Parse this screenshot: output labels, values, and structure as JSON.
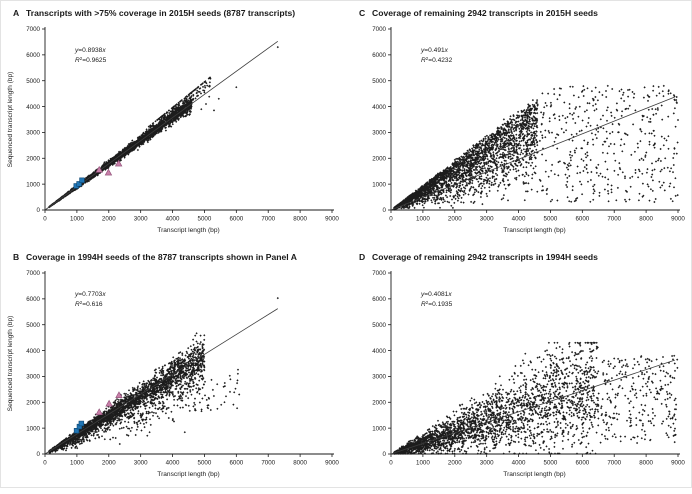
{
  "figure": {
    "background": "#ffffff",
    "kind": "four-panel scatter figure"
  },
  "colors": {
    "point": "#1c1c1c",
    "trendline": "#3c3c3c",
    "axis": "#1a1a1a",
    "tick_text": "#1a1a1a",
    "blue_square_fill": "#2176b5",
    "blue_square_stroke": "#0d4570",
    "pink_triangle_fill": "#c87fa8",
    "pink_triangle_stroke": "#8e4d76"
  },
  "sim_seed": 42,
  "chart_data": [
    {
      "letter": "A",
      "type": "scatter",
      "title": "Transcripts with >75% coverage in 2015H seeds (8787 transcripts)",
      "equation_text": "y=0.8938x",
      "r_squared_text": "R²=0.9625",
      "slope_text": "0.8938",
      "r2_text": "0.9625",
      "slope": 0.8938,
      "r2": 0.9625,
      "n_transcripts": 8787,
      "xlabel": "Transcript length (bp)",
      "ylabel": "Sequenced transcript length (bp)",
      "show_ylabel": true,
      "xlim": [
        0,
        9000
      ],
      "ylim": [
        0,
        7000
      ],
      "tick_step": 1000,
      "trendline": {
        "x0": 0,
        "x1": 7300
      },
      "sim": {
        "shape": "tight",
        "n": 3300,
        "x_min": 130,
        "x_max": 4600,
        "x_pow": 1.15,
        "spread": 0.035,
        "y_floor": 15,
        "upper_cluster": {
          "n": 170,
          "x_min": 3200,
          "x_max": 5200,
          "dev": 0.09
        }
      },
      "outliers": [
        [
          4650,
          4450
        ],
        [
          4750,
          4520
        ],
        [
          5000,
          4550
        ],
        [
          5150,
          4380
        ],
        [
          5450,
          4300
        ],
        [
          6000,
          4750
        ],
        [
          7300,
          6300
        ],
        [
          4900,
          3900
        ],
        [
          5300,
          3850
        ],
        [
          5050,
          4100
        ]
      ],
      "highlight_blue_squares": [
        [
          980,
          930
        ],
        [
          1070,
          1010
        ],
        [
          1160,
          1150
        ]
      ],
      "highlight_pink_triangles": [
        [
          1700,
          1560
        ],
        [
          1990,
          1450
        ],
        [
          2310,
          1800
        ]
      ]
    },
    {
      "letter": "B",
      "type": "scatter",
      "title": "Coverage in 1994H seeds of the 8787 transcripts shown in Panel A",
      "equation_text": "y=0.7703x",
      "r_squared_text": "R²=0.616",
      "slope_text": "0.7703",
      "r2_text": "0.616",
      "slope": 0.7703,
      "r2": 0.616,
      "n_transcripts": 8787,
      "xlabel": "Transcript length (bp)",
      "ylabel": "Sequenced transcript length (bp)",
      "show_ylabel": true,
      "xlim": [
        0,
        9000
      ],
      "ylim": [
        0,
        7000
      ],
      "tick_step": 1000,
      "trendline": {
        "x0": 0,
        "x1": 7300
      },
      "sim": {
        "shape": "loose",
        "n": 3300,
        "x_min": 130,
        "x_max": 5000,
        "x_pow": 1.2,
        "spread": 0.09,
        "below_frac": 0.33,
        "below_dev": 0.26,
        "y_floor": 15,
        "tail": {
          "n": 28,
          "x_min": 5000,
          "x_max": 6100,
          "y_min": 1700,
          "y_max": 3400
        }
      },
      "outliers": [
        [
          4750,
          4350
        ],
        [
          5000,
          3350
        ],
        [
          5400,
          2700
        ],
        [
          5600,
          2600
        ],
        [
          6050,
          3100
        ],
        [
          7300,
          6030
        ],
        [
          5200,
          1700
        ],
        [
          5800,
          2400
        ],
        [
          4800,
          3700
        ]
      ],
      "highlight_blue_squares": [
        [
          990,
          900
        ],
        [
          1080,
          1060
        ],
        [
          1140,
          1180
        ]
      ],
      "highlight_pink_triangles": [
        [
          1700,
          1620
        ],
        [
          2010,
          1950
        ],
        [
          2320,
          2280
        ]
      ]
    },
    {
      "letter": "C",
      "type": "scatter",
      "title": "Coverage of remaining 2942 transcripts in 2015H seeds",
      "equation_text": "y=0.491x",
      "r_squared_text": "R²=0.4232",
      "slope_text": "0.491",
      "r2_text": "0.4232",
      "slope": 0.491,
      "r2": 0.4232,
      "n_transcripts": 2942,
      "xlabel": "Transcript length (bp)",
      "ylabel": "Sequenced transcript length (bp)",
      "show_ylabel": false,
      "xlim": [
        0,
        9000
      ],
      "ylim": [
        0,
        7000
      ],
      "tick_step": 1000,
      "trendline": {
        "x0": 0,
        "x1": 8900
      },
      "sim": {
        "shape": "triangle",
        "n": 2700,
        "x_min": 100,
        "x_max": 4600,
        "x_pow": 1.1,
        "edge": 0.93,
        "v_pow": 0.35,
        "y_floor": 15,
        "tail": {
          "n": 430,
          "x_min": 4600,
          "x_max": 9000,
          "y_min": 300,
          "y_max": 4800
        }
      },
      "outliers": [
        [
          6800,
          4800
        ],
        [
          6300,
          4600
        ],
        [
          5600,
          4100
        ],
        [
          8900,
          4250
        ],
        [
          8300,
          3900
        ],
        [
          8600,
          2000
        ],
        [
          7800,
          1500
        ],
        [
          8500,
          950
        ],
        [
          7400,
          700
        ]
      ],
      "highlight_blue_squares": [],
      "highlight_pink_triangles": []
    },
    {
      "letter": "D",
      "type": "scatter",
      "title": "Coverage of remaining 2942 transcripts in 1994H seeds",
      "equation_text": "y=0.4081x",
      "r_squared_text": "R²=0.1935",
      "slope_text": "0.4081",
      "r2_text": "0.1935",
      "slope": 0.4081,
      "r2": 0.1935,
      "n_transcripts": 2942,
      "xlabel": "Transcript length (bp)",
      "ylabel": "Sequenced transcript length (bp)",
      "show_ylabel": false,
      "xlim": [
        0,
        9000
      ],
      "ylim": [
        0,
        7000
      ],
      "tick_step": 1000,
      "trendline": {
        "x0": 0,
        "x1": 8900
      },
      "sim": {
        "shape": "cloud",
        "n": 2700,
        "x_min": 100,
        "x_max": 6500,
        "x_pow": 1.25,
        "spread": 0.45,
        "cap": 4300,
        "y_floor": 15,
        "tail": {
          "n": 270,
          "x_min": 6500,
          "x_max": 9000,
          "y_min": 400,
          "y_max": 3800
        }
      },
      "outliers": [
        [
          6200,
          4300
        ],
        [
          8900,
          3500
        ],
        [
          8100,
          3650
        ],
        [
          8600,
          2100
        ],
        [
          7900,
          1100
        ],
        [
          5400,
          3700
        ]
      ],
      "highlight_blue_squares": [],
      "highlight_pink_triangles": []
    }
  ]
}
